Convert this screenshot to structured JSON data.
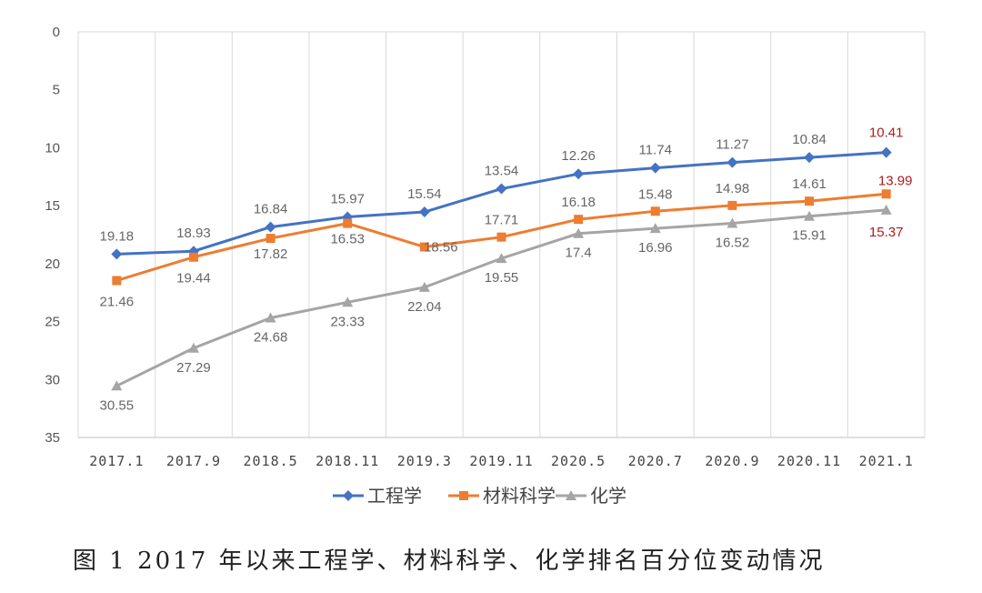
{
  "caption": "图 1 2017 年以来工程学、材料科学、化学排名百分位变动情况",
  "chart_data": {
    "type": "line",
    "y_reversed": true,
    "ylim": [
      0,
      35
    ],
    "yticks": [
      0,
      5,
      10,
      15,
      20,
      25,
      30,
      35
    ],
    "grid": "vertical",
    "legend_position": "bottom",
    "categories": [
      "2017.1",
      "2017.9",
      "2018.5",
      "2018.11",
      "2019.3",
      "2019.11",
      "2020.5",
      "2020.7",
      "2020.9",
      "2020.11",
      "2021.1"
    ],
    "series": [
      {
        "name": "工程学",
        "color": "#4472c4",
        "marker": "diamond",
        "values": [
          19.18,
          18.93,
          16.84,
          15.97,
          15.54,
          13.54,
          12.26,
          11.74,
          11.27,
          10.84,
          10.41
        ],
        "labels": [
          "19.18",
          "18.93",
          "16.84",
          "15.97",
          "15.54",
          "13.54",
          "12.26",
          "11.74",
          "11.27",
          "10.84",
          "10.41"
        ]
      },
      {
        "name": "材料科学",
        "color": "#ed7d31",
        "marker": "square",
        "values": [
          21.46,
          19.44,
          17.82,
          16.53,
          18.56,
          17.71,
          16.18,
          15.48,
          14.98,
          14.61,
          13.99
        ],
        "labels": [
          "21.46",
          "19.44",
          "17.82",
          "16.53",
          "18.56",
          "17.71",
          "16.18",
          "15.48",
          "14.98",
          "14.61",
          "13.99"
        ]
      },
      {
        "name": "化学",
        "color": "#a5a5a5",
        "marker": "triangle",
        "values": [
          30.55,
          27.29,
          24.68,
          23.33,
          22.04,
          19.55,
          17.4,
          16.96,
          16.52,
          15.91,
          15.37
        ],
        "labels": [
          "30.55",
          "27.29",
          "24.68",
          "23.33",
          "22.04",
          "19.55",
          "17.4",
          "16.96",
          "16.52",
          "15.91",
          "15.37"
        ]
      }
    ],
    "highlight_color": "#b01c1c"
  }
}
